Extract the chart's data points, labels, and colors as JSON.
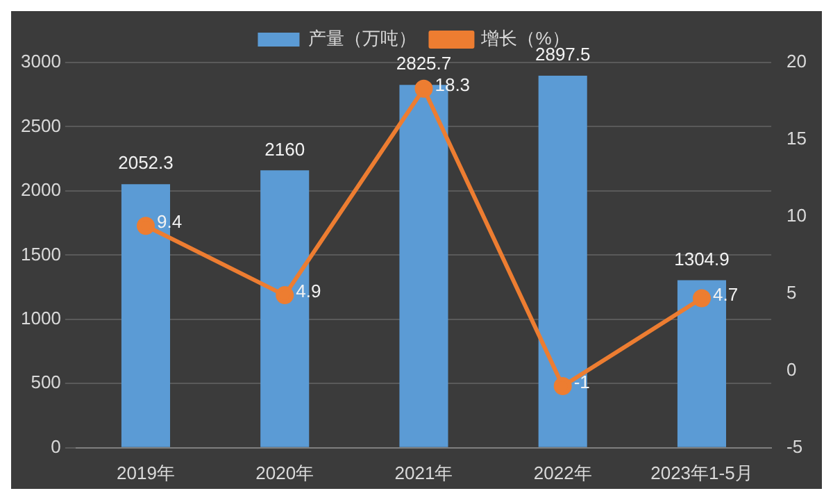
{
  "chart_data": {
    "type": "bar",
    "categories": [
      "2019年",
      "2020年",
      "2021年",
      "2022年",
      "2023年1-5月"
    ],
    "series": [
      {
        "name": "产量（万吨）",
        "color": "#5b9bd5",
        "values": [
          2052.3,
          2160,
          2825.7,
          2897.5,
          1304.9
        ]
      },
      {
        "name": "增长（%）",
        "type": "line",
        "axis": "y2",
        "color": "#ed7d31",
        "values": [
          9.4,
          4.9,
          18.3,
          -1,
          4.7
        ]
      }
    ],
    "ylim": [
      0,
      3000
    ],
    "yticks": [
      0,
      500,
      1000,
      1500,
      2000,
      2500,
      3000
    ],
    "y2lim": [
      -5,
      20
    ],
    "y2ticks": [
      -5,
      0,
      5,
      10,
      15,
      20
    ],
    "grid": "y",
    "legend": "top",
    "marker": "circle",
    "line_style": "solid",
    "data_labels": true
  }
}
